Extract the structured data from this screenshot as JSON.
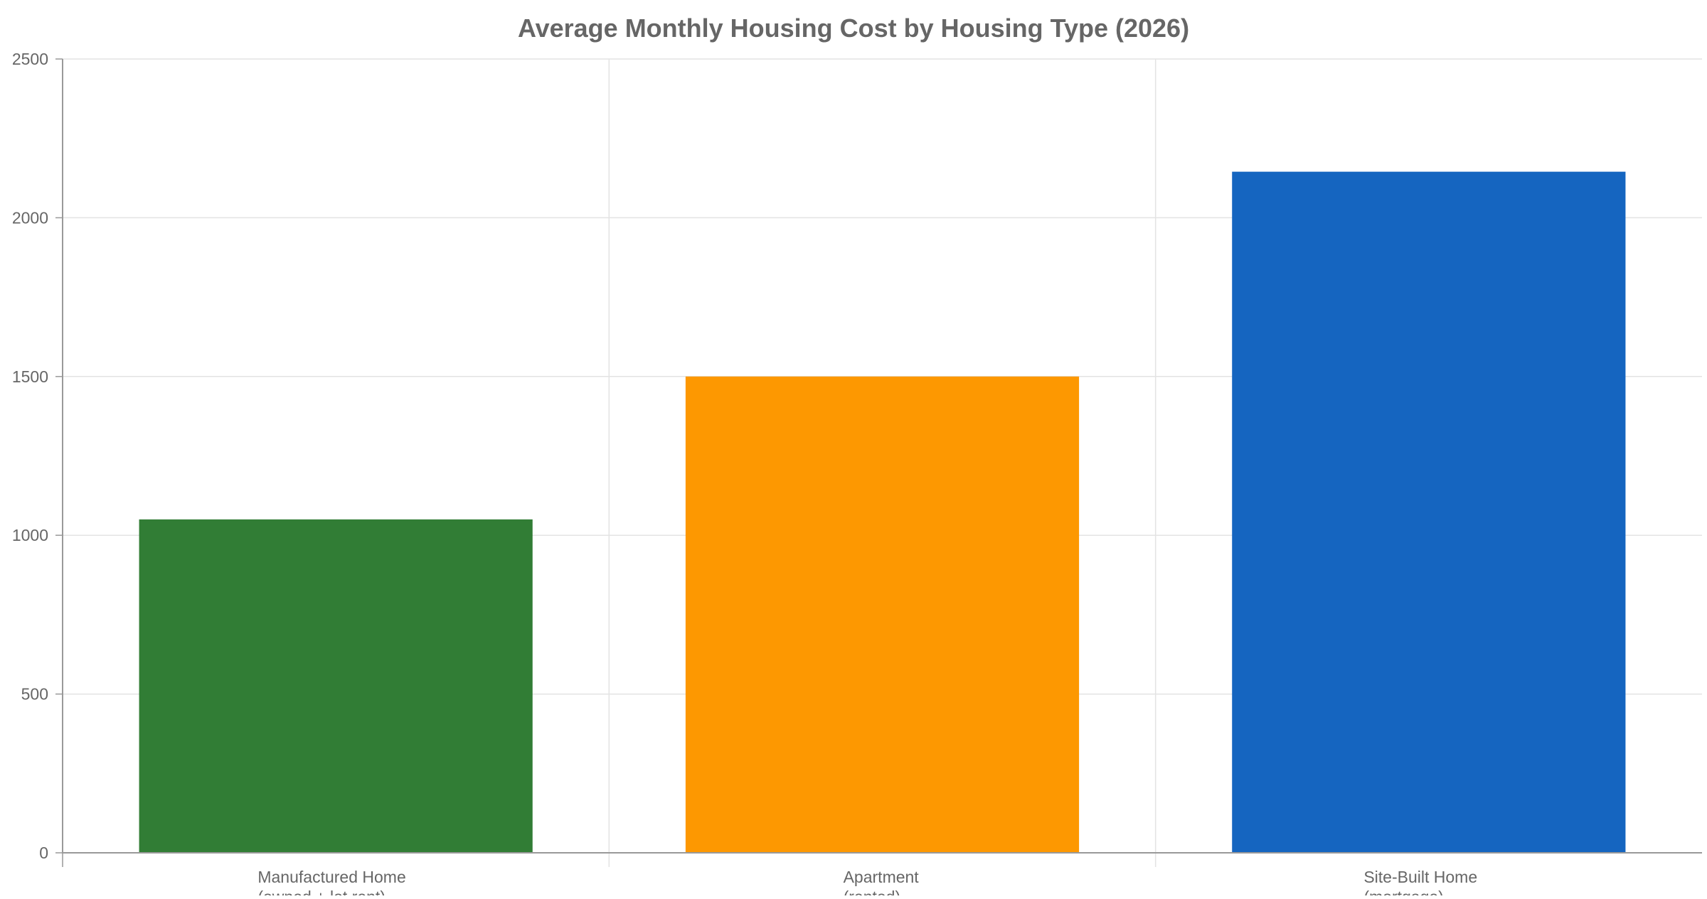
{
  "chart_data": {
    "type": "bar",
    "title": "Average Monthly Housing Cost by Housing Type (2026)",
    "xlabel": "",
    "ylabel": "",
    "categories": [
      [
        "Manufactured Home",
        "(owned + lot rent)"
      ],
      [
        "Apartment",
        "(rented)"
      ],
      [
        "Site-Built Home",
        "(mortgage)"
      ]
    ],
    "values": [
      1050,
      1500,
      2145
    ],
    "colors": [
      "#317d35",
      "#fd9801",
      "#1565c0"
    ],
    "ylim": [
      0,
      2500
    ],
    "yticks": [
      0,
      500,
      1000,
      1500,
      2000,
      2500
    ],
    "grid": true,
    "legend": "none"
  }
}
